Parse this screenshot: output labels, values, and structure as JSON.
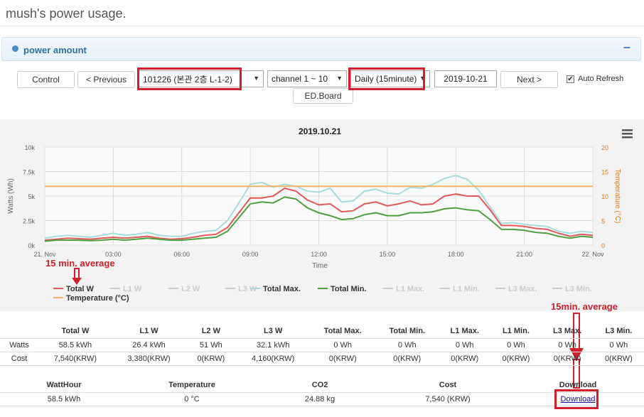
{
  "page": {
    "title": "mush's power usage."
  },
  "panel": {
    "title": "power amount",
    "collapse": "−"
  },
  "controls": {
    "control_label": "Control",
    "previous_label": "< Previous",
    "device": "101226 (본관 2층 L-1-2)",
    "channel": "channel 1 ~ 10",
    "period": "Daily (15minute)",
    "date": "2019-10-21",
    "next_label": "Next >",
    "auto_refresh_label": "Auto Refresh",
    "auto_refresh_checked": true,
    "edboard_label": "ED.Board"
  },
  "annotations": {
    "avg_left": "15 min. average",
    "avg_right": "15min.  average"
  },
  "chart_data": {
    "type": "line",
    "title": "2019.10.21",
    "xlabel": "Time",
    "ylabel": "Watts (Wh)",
    "y2label": "Temperature (°C)",
    "x_ticks": [
      "21. Nov",
      "03:00",
      "06:00",
      "09:00",
      "12:00",
      "15:00",
      "18:00",
      "21:00",
      "22. Nov"
    ],
    "y_ticks": [
      "0k",
      "2.5k",
      "5k",
      "7.5k",
      "10k"
    ],
    "y2_ticks": [
      "0",
      "5",
      "10",
      "15",
      "20"
    ],
    "ylim": [
      0,
      10000
    ],
    "y2lim": [
      0,
      20
    ],
    "x_hours": [
      0,
      0.5,
      1,
      1.5,
      2,
      2.5,
      3,
      3.5,
      4,
      4.5,
      5,
      5.5,
      6,
      6.5,
      7,
      7.5,
      8,
      8.5,
      9,
      9.5,
      10,
      10.5,
      11,
      11.5,
      12,
      12.5,
      13,
      13.5,
      14,
      14.5,
      15,
      15.5,
      16,
      16.5,
      17,
      17.5,
      18,
      18.5,
      19,
      19.5,
      20,
      20.5,
      21,
      21.5,
      22,
      22.5,
      23,
      23.5,
      24
    ],
    "series": [
      {
        "name": "Total W",
        "color": "#e05a5a",
        "axis": "left",
        "values": [
          500,
          600,
          700,
          650,
          600,
          700,
          800,
          700,
          800,
          900,
          700,
          600,
          650,
          800,
          1000,
          1100,
          1800,
          3300,
          4800,
          4800,
          5000,
          5800,
          5500,
          4600,
          4100,
          4200,
          3400,
          3500,
          4200,
          4400,
          4000,
          4200,
          4500,
          4100,
          4200,
          5000,
          5200,
          5000,
          5000,
          3600,
          2000,
          2000,
          1900,
          1700,
          1600,
          1200,
          900,
          1100,
          1000
        ]
      },
      {
        "name": "Total Max.",
        "color": "#a9dcdc",
        "axis": "left",
        "values": [
          700,
          900,
          1000,
          900,
          800,
          1000,
          1200,
          1000,
          1100,
          1300,
          1000,
          900,
          900,
          1200,
          1400,
          1500,
          2500,
          4300,
          6200,
          6400,
          5900,
          6200,
          6000,
          5500,
          5400,
          5800,
          4400,
          4500,
          5500,
          5700,
          5300,
          5200,
          5900,
          5800,
          6200,
          6800,
          7100,
          6700,
          5600,
          3900,
          2200,
          2300,
          2100,
          2000,
          1900,
          1400,
          1200,
          1400,
          1300
        ]
      },
      {
        "name": "Total Min.",
        "color": "#4f9f3f",
        "axis": "left",
        "values": [
          400,
          500,
          500,
          500,
          450,
          500,
          600,
          500,
          600,
          700,
          600,
          500,
          500,
          600,
          700,
          800,
          1400,
          2800,
          4200,
          4400,
          4300,
          4900,
          4700,
          3800,
          3300,
          3000,
          2600,
          2700,
          3100,
          3300,
          3000,
          3000,
          3300,
          3300,
          3400,
          3700,
          3800,
          3600,
          3500,
          2600,
          1600,
          1600,
          1500,
          1300,
          1200,
          900,
          700,
          900,
          800
        ]
      },
      {
        "name": "Temperature (°C)",
        "color": "#f0b36b",
        "axis": "right",
        "values": [
          12,
          12,
          12,
          12,
          12,
          12,
          12,
          12,
          12,
          12,
          12,
          12,
          12,
          12,
          12,
          12,
          12,
          12,
          12,
          12,
          12,
          12,
          12,
          12,
          12,
          12,
          12,
          12,
          12,
          12,
          12,
          12,
          12,
          12,
          12,
          12,
          12,
          12,
          12,
          12,
          12,
          12,
          12,
          12,
          12,
          12,
          12,
          12,
          12
        ]
      }
    ],
    "legend": [
      {
        "label": "Total W",
        "color": "#e05a5a",
        "active": true
      },
      {
        "label": "L1 W",
        "color": "#cccccc",
        "active": false
      },
      {
        "label": "L2 W",
        "color": "#cccccc",
        "active": false
      },
      {
        "label": "L3 W",
        "color": "#cccccc",
        "active": false
      },
      {
        "label": "Total Max.",
        "color": "#a9dcdc",
        "active": true
      },
      {
        "label": "Total Min.",
        "color": "#4f9f3f",
        "active": true
      },
      {
        "label": "L1 Max.",
        "color": "#cccccc",
        "active": false
      },
      {
        "label": "L1 Min.",
        "color": "#cccccc",
        "active": false
      },
      {
        "label": "L3 Max.",
        "color": "#cccccc",
        "active": false
      },
      {
        "label": "L3 Min.",
        "color": "#cccccc",
        "active": false
      },
      {
        "label": "Temperature (°C)",
        "color": "#f0b36b",
        "active": true
      }
    ]
  },
  "summary": {
    "headers": [
      "",
      "Total W",
      "L1 W",
      "L2 W",
      "L3 W",
      "Total Max.",
      "Total Min.",
      "L1 Max.",
      "L1 Min.",
      "L3 Max.",
      "L3 Min."
    ],
    "rows": [
      [
        "Watts",
        "58.5 kWh",
        "26.4 kWh",
        "51 Wh",
        "32.1 kWh",
        "0 Wh",
        "0 Wh",
        "0 Wh",
        "0 Wh",
        "0 Wh",
        "0 Wh"
      ],
      [
        "Cost",
        "7,540(KRW)",
        "3,380(KRW)",
        "0(KRW)",
        "4,160(KRW)",
        "0(KRW)",
        "0(KRW)",
        "0(KRW)",
        "0(KRW)",
        "0(KRW)",
        "0(KRW)"
      ]
    ]
  },
  "totals": {
    "headers": [
      "WattHour",
      "Temperature",
      "CO2",
      "Cost",
      "Download"
    ],
    "values": [
      "58.5 kWh",
      "0 °C",
      "24.88 kg",
      "7,540 (KRW)"
    ],
    "download_label": "Download"
  }
}
